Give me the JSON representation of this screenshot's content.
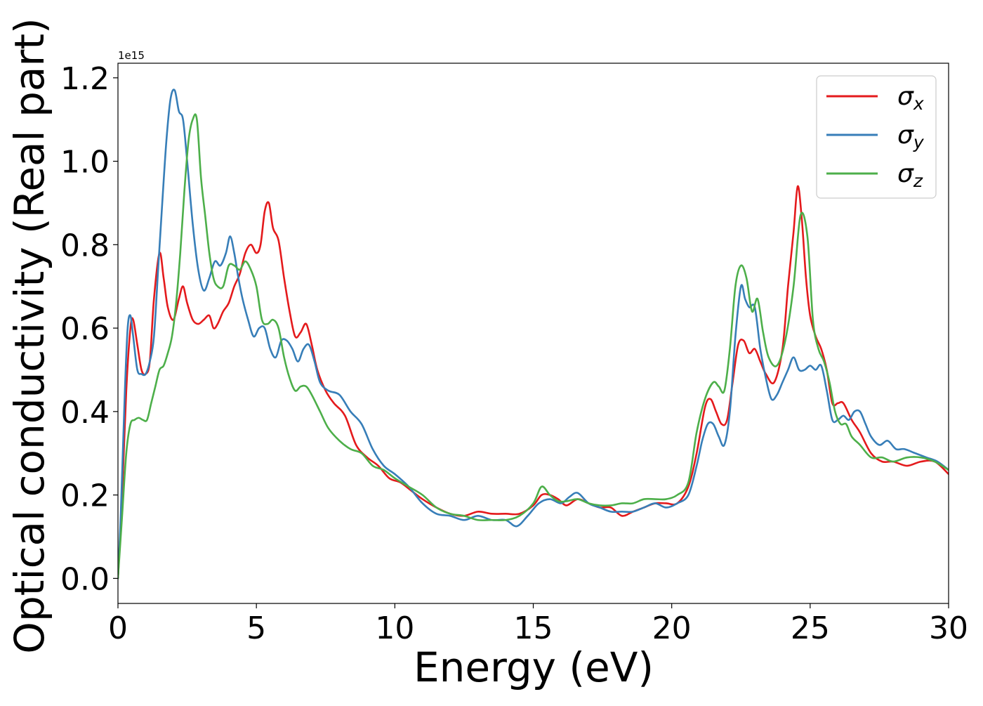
{
  "chart_data": {
    "type": "line",
    "xlabel": "Energy (eV)",
    "ylabel": "Optical conductivity (Real part)",
    "y_offset_label": "1e15",
    "xlim": [
      0,
      30
    ],
    "ylim": [
      -0.06,
      1.235
    ],
    "x_ticks": [
      {
        "value": 0,
        "label": "0"
      },
      {
        "value": 5,
        "label": "5"
      },
      {
        "value": 10,
        "label": "10"
      },
      {
        "value": 15,
        "label": "15"
      },
      {
        "value": 20,
        "label": "20"
      },
      {
        "value": 25,
        "label": "25"
      },
      {
        "value": 30,
        "label": "30"
      }
    ],
    "y_ticks": [
      {
        "value": 0.0,
        "label": "0.0"
      },
      {
        "value": 0.2,
        "label": "0.2"
      },
      {
        "value": 0.4,
        "label": "0.4"
      },
      {
        "value": 0.6,
        "label": "0.6"
      },
      {
        "value": 0.8,
        "label": "0.8"
      },
      {
        "value": 1.0,
        "label": "1.0"
      },
      {
        "value": 1.2,
        "label": "1.2"
      }
    ],
    "grid": false,
    "legend_position": "top-right",
    "series": [
      {
        "name": "σx",
        "symbol": "σ",
        "subscript": "x",
        "color": "#e41a1c",
        "x": [
          0,
          0.15,
          0.3,
          0.45,
          0.55,
          0.7,
          0.85,
          1.0,
          1.15,
          1.3,
          1.5,
          1.65,
          1.8,
          2.0,
          2.2,
          2.35,
          2.5,
          2.7,
          2.9,
          3.1,
          3.3,
          3.45,
          3.6,
          3.8,
          4.0,
          4.2,
          4.4,
          4.6,
          4.8,
          5.0,
          5.15,
          5.3,
          5.45,
          5.6,
          5.8,
          6.0,
          6.2,
          6.4,
          6.6,
          6.8,
          7.0,
          7.2,
          7.5,
          7.8,
          8.2,
          8.6,
          9.0,
          9.4,
          9.8,
          10.2,
          10.6,
          11.0,
          11.5,
          12.0,
          12.5,
          13.0,
          13.5,
          14.0,
          14.5,
          15.0,
          15.3,
          15.6,
          15.9,
          16.2,
          16.6,
          17.0,
          17.4,
          17.8,
          18.2,
          18.6,
          19.0,
          19.4,
          19.8,
          20.2,
          20.6,
          20.9,
          21.2,
          21.4,
          21.6,
          21.8,
          22.0,
          22.2,
          22.4,
          22.6,
          22.8,
          23.0,
          23.2,
          23.4,
          23.7,
          24.0,
          24.2,
          24.4,
          24.55,
          24.7,
          24.85,
          25.0,
          25.2,
          25.4,
          25.6,
          25.8,
          26.0,
          26.2,
          26.5,
          26.8,
          27.2,
          27.6,
          28.0,
          28.5,
          29.0,
          29.5,
          30.0
        ],
        "y": [
          0.0,
          0.2,
          0.45,
          0.6,
          0.62,
          0.56,
          0.5,
          0.49,
          0.52,
          0.67,
          0.78,
          0.72,
          0.65,
          0.62,
          0.67,
          0.7,
          0.66,
          0.62,
          0.61,
          0.62,
          0.63,
          0.6,
          0.61,
          0.64,
          0.66,
          0.7,
          0.73,
          0.78,
          0.8,
          0.78,
          0.8,
          0.88,
          0.9,
          0.84,
          0.81,
          0.72,
          0.64,
          0.58,
          0.59,
          0.61,
          0.56,
          0.5,
          0.45,
          0.42,
          0.39,
          0.32,
          0.29,
          0.27,
          0.24,
          0.23,
          0.21,
          0.19,
          0.17,
          0.155,
          0.15,
          0.16,
          0.155,
          0.155,
          0.155,
          0.175,
          0.2,
          0.2,
          0.19,
          0.175,
          0.19,
          0.18,
          0.17,
          0.17,
          0.15,
          0.16,
          0.17,
          0.18,
          0.18,
          0.18,
          0.22,
          0.3,
          0.41,
          0.43,
          0.4,
          0.37,
          0.38,
          0.47,
          0.56,
          0.57,
          0.54,
          0.55,
          0.52,
          0.49,
          0.47,
          0.55,
          0.7,
          0.83,
          0.94,
          0.86,
          0.72,
          0.63,
          0.58,
          0.55,
          0.5,
          0.42,
          0.42,
          0.42,
          0.38,
          0.35,
          0.3,
          0.28,
          0.28,
          0.27,
          0.28,
          0.28,
          0.25
        ]
      },
      {
        "name": "σy",
        "symbol": "σ",
        "subscript": "y",
        "color": "#377eb8",
        "x": [
          0,
          0.1,
          0.25,
          0.35,
          0.45,
          0.55,
          0.7,
          0.85,
          1.0,
          1.15,
          1.3,
          1.45,
          1.6,
          1.75,
          1.9,
          2.05,
          2.2,
          2.35,
          2.5,
          2.7,
          2.9,
          3.1,
          3.3,
          3.5,
          3.7,
          3.9,
          4.05,
          4.2,
          4.35,
          4.5,
          4.7,
          4.9,
          5.1,
          5.3,
          5.5,
          5.7,
          5.9,
          6.1,
          6.3,
          6.5,
          6.7,
          6.9,
          7.1,
          7.3,
          7.6,
          8.0,
          8.4,
          8.8,
          9.2,
          9.6,
          10.0,
          10.5,
          11.0,
          11.5,
          12.0,
          12.5,
          13.0,
          13.5,
          14.0,
          14.4,
          14.8,
          15.2,
          15.6,
          16.0,
          16.3,
          16.6,
          17.0,
          17.4,
          17.8,
          18.2,
          18.6,
          19.0,
          19.4,
          19.8,
          20.2,
          20.6,
          20.9,
          21.1,
          21.3,
          21.5,
          21.7,
          21.9,
          22.1,
          22.3,
          22.5,
          22.65,
          22.8,
          23.0,
          23.2,
          23.4,
          23.6,
          23.8,
          24.0,
          24.2,
          24.4,
          24.6,
          24.8,
          25.0,
          25.2,
          25.4,
          25.6,
          25.8,
          26.0,
          26.2,
          26.4,
          26.6,
          26.8,
          27.0,
          27.2,
          27.5,
          27.8,
          28.1,
          28.4,
          28.8,
          29.2,
          29.6,
          30.0
        ],
        "y": [
          0.0,
          0.15,
          0.45,
          0.6,
          0.63,
          0.58,
          0.5,
          0.49,
          0.49,
          0.52,
          0.58,
          0.74,
          0.9,
          1.05,
          1.15,
          1.17,
          1.12,
          1.1,
          1.0,
          0.85,
          0.74,
          0.69,
          0.72,
          0.76,
          0.75,
          0.78,
          0.82,
          0.78,
          0.72,
          0.67,
          0.62,
          0.58,
          0.6,
          0.6,
          0.55,
          0.53,
          0.57,
          0.57,
          0.55,
          0.52,
          0.55,
          0.56,
          0.52,
          0.47,
          0.45,
          0.44,
          0.4,
          0.37,
          0.31,
          0.27,
          0.25,
          0.22,
          0.18,
          0.155,
          0.15,
          0.14,
          0.15,
          0.14,
          0.14,
          0.125,
          0.15,
          0.18,
          0.19,
          0.18,
          0.195,
          0.205,
          0.18,
          0.17,
          0.16,
          0.16,
          0.16,
          0.17,
          0.18,
          0.17,
          0.18,
          0.2,
          0.27,
          0.33,
          0.37,
          0.37,
          0.34,
          0.32,
          0.4,
          0.58,
          0.7,
          0.67,
          0.65,
          0.65,
          0.55,
          0.48,
          0.43,
          0.44,
          0.47,
          0.5,
          0.53,
          0.5,
          0.5,
          0.51,
          0.5,
          0.51,
          0.45,
          0.38,
          0.38,
          0.39,
          0.38,
          0.4,
          0.4,
          0.37,
          0.34,
          0.32,
          0.33,
          0.31,
          0.31,
          0.3,
          0.29,
          0.28,
          0.26
        ]
      },
      {
        "name": "σz",
        "symbol": "σ",
        "subscript": "z",
        "color": "#4daf4a",
        "x": [
          0,
          0.15,
          0.3,
          0.45,
          0.6,
          0.75,
          0.9,
          1.05,
          1.2,
          1.35,
          1.5,
          1.65,
          1.8,
          1.95,
          2.1,
          2.25,
          2.4,
          2.55,
          2.7,
          2.85,
          3.0,
          3.15,
          3.3,
          3.45,
          3.6,
          3.8,
          4.0,
          4.2,
          4.4,
          4.6,
          4.8,
          5.0,
          5.2,
          5.4,
          5.6,
          5.8,
          6.0,
          6.2,
          6.4,
          6.6,
          6.8,
          7.0,
          7.3,
          7.6,
          8.0,
          8.4,
          8.8,
          9.2,
          9.6,
          10.0,
          10.5,
          11.0,
          11.5,
          12.0,
          12.5,
          13.0,
          13.5,
          14.0,
          14.5,
          15.0,
          15.3,
          15.6,
          15.9,
          16.2,
          16.6,
          17.0,
          17.4,
          17.8,
          18.2,
          18.6,
          19.0,
          19.4,
          19.8,
          20.2,
          20.6,
          20.9,
          21.2,
          21.5,
          21.7,
          21.9,
          22.1,
          22.3,
          22.5,
          22.7,
          22.9,
          23.1,
          23.3,
          23.5,
          23.8,
          24.1,
          24.4,
          24.65,
          24.9,
          25.1,
          25.3,
          25.5,
          25.7,
          25.9,
          26.1,
          26.3,
          26.5,
          26.8,
          27.2,
          27.6,
          28.0,
          28.5,
          29.0,
          29.5,
          30.0
        ],
        "y": [
          0.0,
          0.15,
          0.3,
          0.37,
          0.38,
          0.385,
          0.38,
          0.38,
          0.42,
          0.46,
          0.5,
          0.51,
          0.54,
          0.58,
          0.66,
          0.78,
          0.93,
          1.05,
          1.1,
          1.1,
          0.96,
          0.87,
          0.78,
          0.72,
          0.7,
          0.7,
          0.75,
          0.75,
          0.74,
          0.76,
          0.74,
          0.7,
          0.62,
          0.61,
          0.62,
          0.6,
          0.53,
          0.48,
          0.45,
          0.46,
          0.46,
          0.44,
          0.4,
          0.36,
          0.33,
          0.31,
          0.3,
          0.27,
          0.26,
          0.24,
          0.22,
          0.2,
          0.17,
          0.155,
          0.15,
          0.14,
          0.14,
          0.14,
          0.15,
          0.18,
          0.22,
          0.2,
          0.185,
          0.185,
          0.19,
          0.18,
          0.175,
          0.175,
          0.18,
          0.18,
          0.19,
          0.19,
          0.19,
          0.2,
          0.23,
          0.35,
          0.43,
          0.47,
          0.46,
          0.45,
          0.55,
          0.7,
          0.75,
          0.72,
          0.64,
          0.67,
          0.59,
          0.53,
          0.51,
          0.57,
          0.7,
          0.87,
          0.82,
          0.62,
          0.55,
          0.52,
          0.47,
          0.4,
          0.37,
          0.37,
          0.34,
          0.32,
          0.29,
          0.29,
          0.28,
          0.29,
          0.29,
          0.28,
          0.26
        ]
      }
    ]
  }
}
